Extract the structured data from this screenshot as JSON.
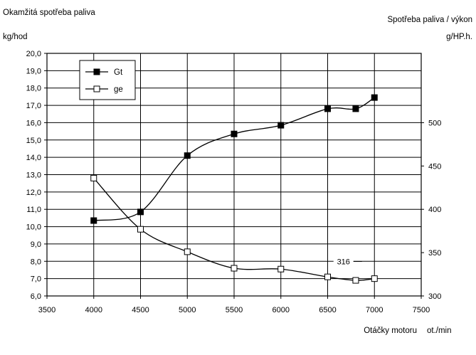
{
  "chart_data": {
    "type": "line",
    "title_left": "Okamžitá spotřeba paliva",
    "title_right": "Spotřeba paliva / výkon",
    "y_left_unit": "kg/hod",
    "y_right_unit": "g/HP.h.",
    "xlabel": "Otáčky motoru",
    "xunit": "ot./min",
    "xlim": [
      3500,
      7500
    ],
    "x_ticks": [
      "3500",
      "4000",
      "4500",
      "5000",
      "5500",
      "6000",
      "6500",
      "7000",
      "7500"
    ],
    "ylim_left": [
      6.0,
      20.0
    ],
    "y_left_ticks": [
      "6,0",
      "7,0",
      "8,0",
      "9,0",
      "10,0",
      "11,0",
      "12,0",
      "13,0",
      "14,0",
      "15,0",
      "16,0",
      "17,0",
      "18,0",
      "19,0",
      "20,0"
    ],
    "ylim_right": [
      300,
      580
    ],
    "y_right_ticks": [
      "300",
      "350",
      "400",
      "450",
      "500"
    ],
    "grid": true,
    "legend_placement": "top-left",
    "series": [
      {
        "name": "Gt",
        "axis": "left",
        "marker": "filled-square",
        "x": [
          4000,
          4500,
          5000,
          5500,
          6000,
          6500,
          6800,
          7000
        ],
        "values": [
          10.35,
          10.85,
          14.1,
          15.35,
          15.85,
          16.8,
          16.8,
          17.45
        ]
      },
      {
        "name": "ge",
        "axis": "right",
        "marker": "open-square",
        "x": [
          4000,
          4500,
          5000,
          5500,
          6000,
          6500,
          6800,
          7000
        ],
        "values": [
          436,
          377,
          351,
          332,
          331,
          322,
          318,
          320
        ]
      }
    ],
    "annotation": {
      "text": "316",
      "x": 6730,
      "y_right": 316
    }
  }
}
